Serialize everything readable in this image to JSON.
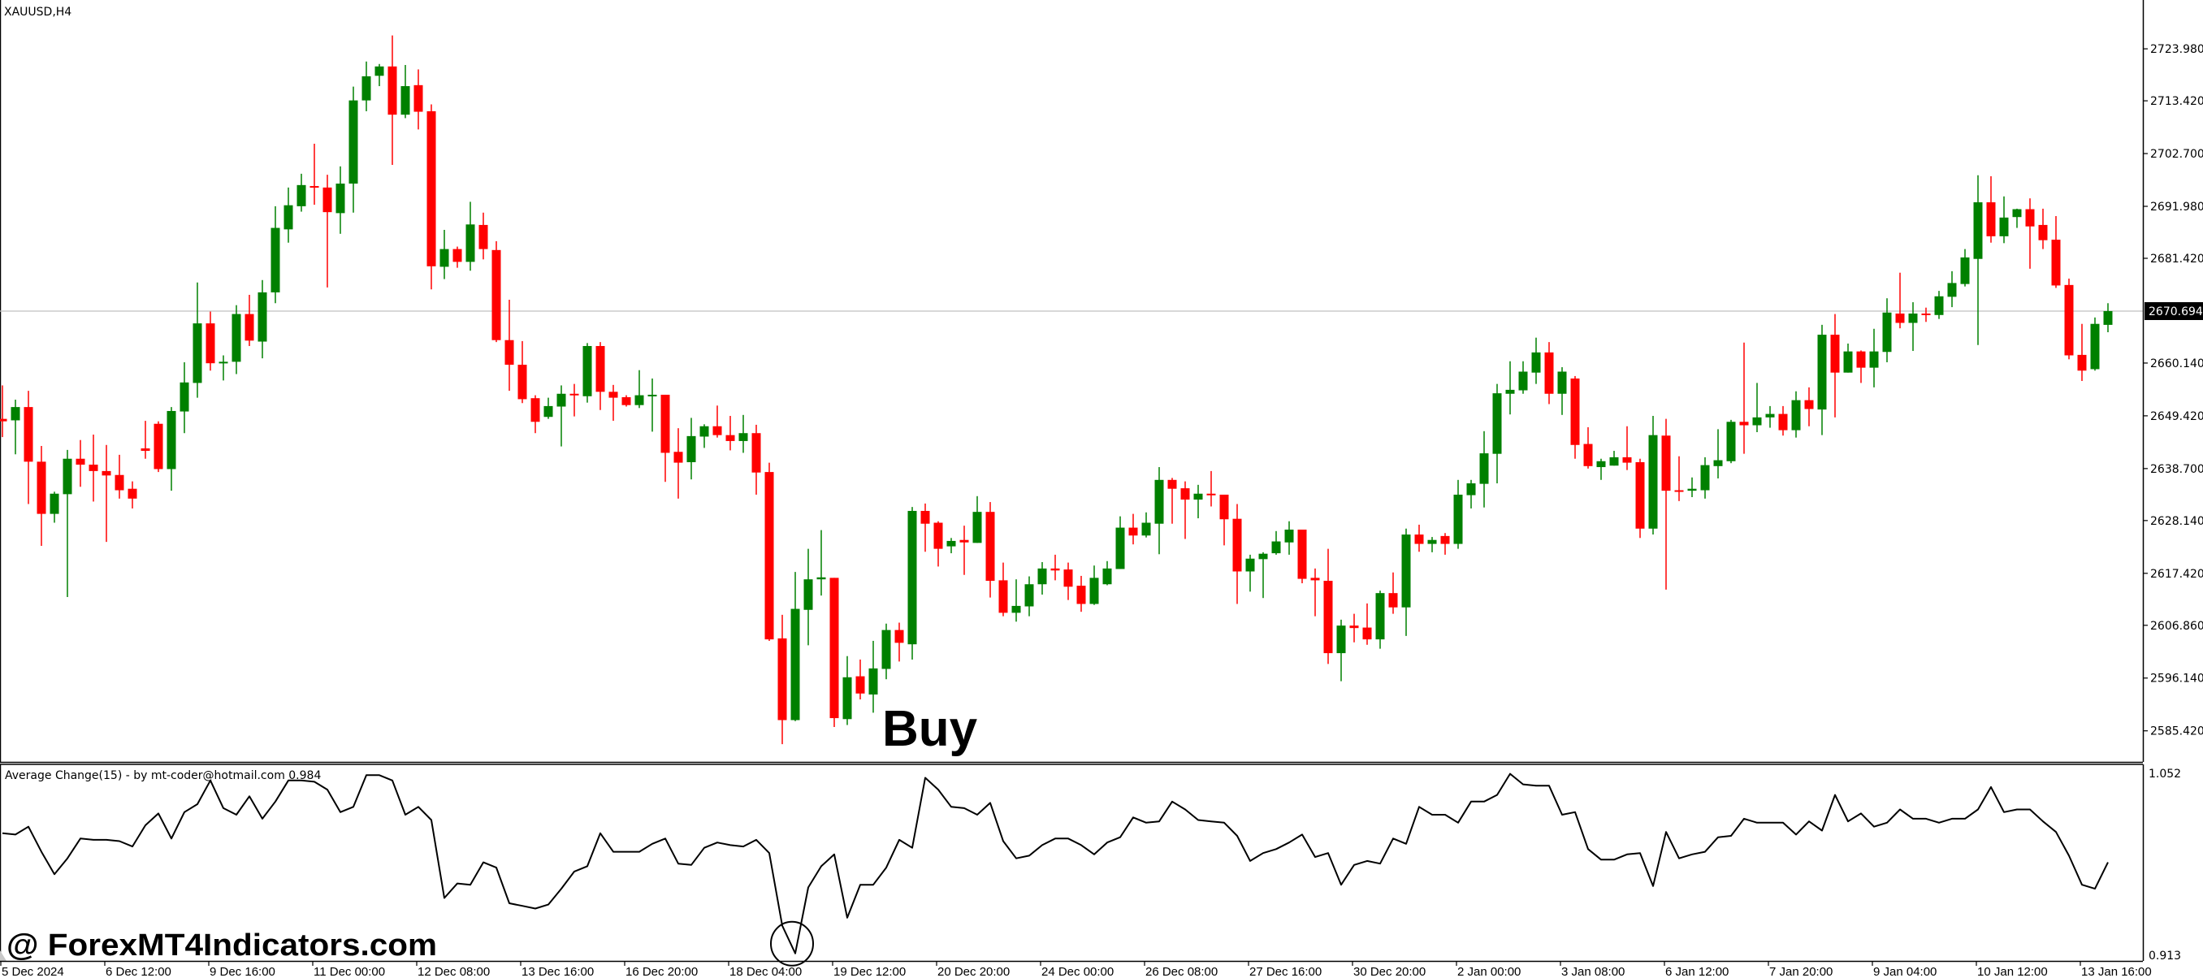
{
  "chart_data": {
    "type": "candlestick",
    "title": "XAUUSD,H4",
    "symbol": "XAUUSD",
    "timeframe": "H4",
    "colors": {
      "bull": "#008000",
      "bear": "#ff0000",
      "indicator_line": "#000000",
      "current_price_line": "#c0c0c0",
      "current_price_box": "#000000"
    },
    "price_axis": {
      "ticks": [
        2723.98,
        2713.42,
        2702.7,
        2691.98,
        2681.42,
        2660.14,
        2649.42,
        2638.7,
        2628.14,
        2617.42,
        2606.86,
        2596.14,
        2585.42
      ],
      "tick_labels": [
        "2723.980",
        "2713.420",
        "2702.700",
        "2691.980",
        "2681.420",
        "2660.140",
        "2649.420",
        "2638.700",
        "2628.140",
        "2617.420",
        "2606.860",
        "2596.140",
        "2585.420"
      ],
      "y_range": [
        2579.1,
        2733.9
      ],
      "current_price": 2670.694,
      "current_price_label": "2670.694"
    },
    "time_axis": {
      "labels": [
        "5 Dec 2024",
        "6 Dec 12:00",
        "9 Dec 16:00",
        "11 Dec 00:00",
        "12 Dec 08:00",
        "13 Dec 16:00",
        "16 Dec 20:00",
        "18 Dec 04:00",
        "19 Dec 12:00",
        "20 Dec 20:00",
        "24 Dec 00:00",
        "26 Dec 08:00",
        "27 Dec 16:00",
        "30 Dec 20:00",
        "2 Jan 00:00",
        "3 Jan 08:00",
        "6 Jan 12:00",
        "7 Jan 20:00",
        "9 Jan 04:00",
        "10 Jan 12:00",
        "13 Jan 16:00"
      ],
      "bars_per_label": 8
    },
    "ohlc_fields": [
      "open",
      "high",
      "low",
      "close"
    ],
    "candles": [
      [
        2648.8,
        2655.6,
        2645.1,
        2648.3
      ],
      [
        2648.5,
        2652.7,
        2641.6,
        2651.2
      ],
      [
        2651.2,
        2654.5,
        2631.5,
        2640.1
      ],
      [
        2640.1,
        2643.3,
        2623.0,
        2629.5
      ],
      [
        2629.5,
        2634.0,
        2627.7,
        2633.6
      ],
      [
        2633.5,
        2642.5,
        2612.6,
        2640.7
      ],
      [
        2640.7,
        2644.5,
        2635.0,
        2639.5
      ],
      [
        2639.5,
        2645.6,
        2632.0,
        2638.2
      ],
      [
        2638.2,
        2643.5,
        2623.8,
        2637.3
      ],
      [
        2637.4,
        2641.5,
        2632.6,
        2634.3
      ],
      [
        2634.6,
        2636.1,
        2630.6,
        2632.6
      ],
      [
        2642.8,
        2648.4,
        2640.7,
        2642.3
      ],
      [
        2647.8,
        2648.3,
        2638.0,
        2638.6
      ],
      [
        2638.6,
        2651.2,
        2634.2,
        2650.4
      ],
      [
        2650.3,
        2660.3,
        2645.9,
        2656.2
      ],
      [
        2656.1,
        2676.5,
        2653.1,
        2668.2
      ],
      [
        2668.2,
        2670.6,
        2658.6,
        2660.1
      ],
      [
        2660.1,
        2661.7,
        2656.6,
        2660.4
      ],
      [
        2660.4,
        2671.9,
        2657.9,
        2670.1
      ],
      [
        2670.1,
        2674.0,
        2663.6,
        2664.7
      ],
      [
        2664.5,
        2677.0,
        2661.1,
        2674.5
      ],
      [
        2674.5,
        2692.0,
        2672.3,
        2687.6
      ],
      [
        2687.3,
        2695.8,
        2684.6,
        2692.2
      ],
      [
        2692.0,
        2698.6,
        2690.9,
        2696.3
      ],
      [
        2696.1,
        2704.7,
        2692.3,
        2695.8
      ],
      [
        2695.8,
        2698.4,
        2675.5,
        2690.8
      ],
      [
        2690.6,
        2700.1,
        2686.4,
        2696.6
      ],
      [
        2696.6,
        2716.3,
        2690.7,
        2713.5
      ],
      [
        2713.5,
        2721.4,
        2711.3,
        2718.4
      ],
      [
        2718.5,
        2720.9,
        2716.4,
        2720.4
      ],
      [
        2720.4,
        2726.7,
        2700.4,
        2710.6
      ],
      [
        2710.6,
        2720.7,
        2709.9,
        2716.4
      ],
      [
        2716.6,
        2719.8,
        2707.6,
        2711.2
      ],
      [
        2711.3,
        2712.7,
        2675.1,
        2679.8
      ],
      [
        2679.7,
        2687.2,
        2677.2,
        2683.3
      ],
      [
        2683.3,
        2683.8,
        2679.5,
        2680.7
      ],
      [
        2680.7,
        2692.9,
        2678.9,
        2688.3
      ],
      [
        2688.2,
        2690.7,
        2681.2,
        2683.3
      ],
      [
        2683.1,
        2684.9,
        2664.4,
        2664.8
      ],
      [
        2664.8,
        2673.0,
        2654.5,
        2659.8
      ],
      [
        2659.8,
        2664.6,
        2652.0,
        2652.8
      ],
      [
        2653.0,
        2653.6,
        2645.9,
        2648.2
      ],
      [
        2649.2,
        2653.1,
        2648.8,
        2651.4
      ],
      [
        2651.3,
        2655.6,
        2643.2,
        2653.9
      ],
      [
        2653.9,
        2655.9,
        2649.3,
        2653.7
      ],
      [
        2653.4,
        2664.2,
        2652.1,
        2663.6
      ],
      [
        2663.6,
        2664.4,
        2650.6,
        2654.3
      ],
      [
        2654.3,
        2655.7,
        2648.4,
        2653.1
      ],
      [
        2653.2,
        2653.6,
        2651.3,
        2651.6
      ],
      [
        2651.6,
        2658.7,
        2651.0,
        2653.6
      ],
      [
        2653.4,
        2657.0,
        2646.2,
        2653.7
      ],
      [
        2653.7,
        2653.7,
        2636.0,
        2641.9
      ],
      [
        2642.1,
        2646.9,
        2632.6,
        2639.9
      ],
      [
        2640.0,
        2649.0,
        2636.5,
        2645.3
      ],
      [
        2645.2,
        2647.7,
        2642.9,
        2647.3
      ],
      [
        2647.3,
        2651.5,
        2645.0,
        2645.5
      ],
      [
        2645.5,
        2649.4,
        2642.4,
        2644.3
      ],
      [
        2644.3,
        2649.6,
        2641.9,
        2645.9
      ],
      [
        2645.9,
        2647.6,
        2633.4,
        2637.9
      ],
      [
        2638.0,
        2639.9,
        2603.7,
        2604.0
      ],
      [
        2604.2,
        2609.0,
        2582.7,
        2587.6
      ],
      [
        2587.6,
        2617.7,
        2587.4,
        2610.2
      ],
      [
        2610.0,
        2622.4,
        2602.8,
        2616.2
      ],
      [
        2616.2,
        2626.2,
        2612.9,
        2616.6
      ],
      [
        2616.5,
        2616.5,
        2586.2,
        2588.0
      ],
      [
        2587.8,
        2600.6,
        2586.6,
        2596.3
      ],
      [
        2596.5,
        2599.9,
        2591.8,
        2593.0
      ],
      [
        2592.8,
        2603.7,
        2589.1,
        2598.1
      ],
      [
        2598.0,
        2607.2,
        2595.9,
        2605.9
      ],
      [
        2605.9,
        2607.4,
        2599.5,
        2603.3
      ],
      [
        2603.0,
        2630.9,
        2599.9,
        2630.1
      ],
      [
        2630.1,
        2631.6,
        2621.8,
        2627.5
      ],
      [
        2627.7,
        2628.0,
        2618.8,
        2622.4
      ],
      [
        2622.9,
        2624.6,
        2621.5,
        2624.0
      ],
      [
        2624.2,
        2627.1,
        2617.1,
        2623.7
      ],
      [
        2623.6,
        2633.1,
        2623.6,
        2629.9
      ],
      [
        2629.9,
        2631.9,
        2612.5,
        2615.9
      ],
      [
        2616.0,
        2619.6,
        2608.7,
        2609.4
      ],
      [
        2609.4,
        2616.2,
        2607.6,
        2610.8
      ],
      [
        2610.7,
        2616.8,
        2608.7,
        2615.2
      ],
      [
        2615.2,
        2619.7,
        2613.1,
        2618.4
      ],
      [
        2618.4,
        2621.2,
        2616.0,
        2618.0
      ],
      [
        2618.2,
        2619.6,
        2612.0,
        2614.7
      ],
      [
        2614.9,
        2616.9,
        2609.6,
        2611.2
      ],
      [
        2611.2,
        2619.0,
        2611.0,
        2616.5
      ],
      [
        2615.2,
        2619.9,
        2615.0,
        2618.4
      ],
      [
        2618.3,
        2629.0,
        2618.3,
        2626.7
      ],
      [
        2626.7,
        2629.5,
        2623.3,
        2625.1
      ],
      [
        2625.1,
        2629.8,
        2624.7,
        2627.7
      ],
      [
        2627.5,
        2639.0,
        2621.3,
        2636.4
      ],
      [
        2636.4,
        2636.8,
        2627.5,
        2634.6
      ],
      [
        2634.7,
        2636.1,
        2624.4,
        2632.4
      ],
      [
        2632.4,
        2635.4,
        2628.6,
        2633.6
      ],
      [
        2633.6,
        2638.2,
        2631.0,
        2633.3
      ],
      [
        2633.4,
        2633.4,
        2623.1,
        2628.4
      ],
      [
        2628.5,
        2631.5,
        2611.2,
        2617.8
      ],
      [
        2617.8,
        2621.2,
        2613.7,
        2620.4
      ],
      [
        2620.3,
        2621.7,
        2612.4,
        2621.4
      ],
      [
        2621.5,
        2626.0,
        2621.2,
        2623.9
      ],
      [
        2623.7,
        2628.0,
        2621.2,
        2626.3
      ],
      [
        2626.3,
        2626.3,
        2615.4,
        2616.3
      ],
      [
        2616.5,
        2618.4,
        2608.7,
        2616.0
      ],
      [
        2615.9,
        2622.4,
        2599.0,
        2601.2
      ],
      [
        2601.2,
        2608.0,
        2595.5,
        2606.8
      ],
      [
        2606.8,
        2609.2,
        2603.4,
        2606.3
      ],
      [
        2606.4,
        2611.3,
        2602.9,
        2604.0
      ],
      [
        2604.0,
        2613.9,
        2602.1,
        2613.4
      ],
      [
        2613.4,
        2617.6,
        2609.2,
        2610.5
      ],
      [
        2610.5,
        2626.5,
        2604.7,
        2625.3
      ],
      [
        2625.3,
        2627.3,
        2621.8,
        2623.4
      ],
      [
        2623.4,
        2624.8,
        2621.7,
        2624.2
      ],
      [
        2625.0,
        2625.6,
        2621.2,
        2623.4
      ],
      [
        2623.4,
        2636.4,
        2622.4,
        2633.4
      ],
      [
        2633.3,
        2636.4,
        2630.6,
        2635.7
      ],
      [
        2635.6,
        2646.3,
        2630.8,
        2641.8
      ],
      [
        2641.7,
        2655.9,
        2635.7,
        2654.0
      ],
      [
        2653.9,
        2660.5,
        2649.7,
        2654.7
      ],
      [
        2654.6,
        2660.5,
        2653.9,
        2658.4
      ],
      [
        2658.2,
        2665.3,
        2655.9,
        2662.3
      ],
      [
        2662.3,
        2664.4,
        2651.8,
        2653.9
      ],
      [
        2653.9,
        2659.3,
        2649.6,
        2658.4
      ],
      [
        2657.0,
        2657.5,
        2640.7,
        2643.5
      ],
      [
        2643.7,
        2647.1,
        2638.7,
        2639.2
      ],
      [
        2639.0,
        2640.7,
        2636.4,
        2640.2
      ],
      [
        2639.3,
        2642.3,
        2639.3,
        2641.0
      ],
      [
        2641.0,
        2647.3,
        2638.4,
        2639.9
      ],
      [
        2640.0,
        2640.7,
        2624.6,
        2626.5
      ],
      [
        2626.5,
        2649.4,
        2625.3,
        2645.5
      ],
      [
        2645.4,
        2648.8,
        2614.1,
        2634.2
      ],
      [
        2634.3,
        2641.2,
        2632.1,
        2634.0
      ],
      [
        2634.2,
        2636.9,
        2632.9,
        2634.6
      ],
      [
        2634.3,
        2641.0,
        2632.6,
        2639.4
      ],
      [
        2639.2,
        2646.7,
        2636.7,
        2640.4
      ],
      [
        2640.2,
        2648.6,
        2639.8,
        2648.2
      ],
      [
        2648.2,
        2664.3,
        2641.7,
        2647.5
      ],
      [
        2647.5,
        2656.1,
        2646.1,
        2649.1
      ],
      [
        2649.1,
        2651.4,
        2647.0,
        2649.8
      ],
      [
        2649.8,
        2651.4,
        2645.4,
        2646.5
      ],
      [
        2646.5,
        2654.4,
        2645.0,
        2652.6
      ],
      [
        2652.6,
        2655.2,
        2647.3,
        2650.8
      ],
      [
        2650.7,
        2667.9,
        2645.5,
        2665.9
      ],
      [
        2665.9,
        2670.1,
        2649.1,
        2658.2
      ],
      [
        2658.2,
        2664.1,
        2658.2,
        2662.5
      ],
      [
        2662.5,
        2662.7,
        2656.1,
        2659.2
      ],
      [
        2659.2,
        2667.1,
        2655.2,
        2662.5
      ],
      [
        2662.4,
        2673.3,
        2660.3,
        2670.4
      ],
      [
        2670.2,
        2678.5,
        2667.2,
        2668.3
      ],
      [
        2668.3,
        2672.5,
        2662.6,
        2670.2
      ],
      [
        2670.2,
        2671.4,
        2668.5,
        2669.9
      ],
      [
        2669.9,
        2674.8,
        2669.1,
        2673.7
      ],
      [
        2673.6,
        2678.8,
        2671.5,
        2676.4
      ],
      [
        2676.2,
        2683.3,
        2675.7,
        2681.6
      ],
      [
        2681.3,
        2698.3,
        2663.8,
        2692.8
      ],
      [
        2692.8,
        2698.1,
        2684.6,
        2685.9
      ],
      [
        2685.9,
        2694.0,
        2684.5,
        2689.7
      ],
      [
        2689.8,
        2691.5,
        2687.6,
        2691.4
      ],
      [
        2691.4,
        2693.6,
        2679.3,
        2687.9
      ],
      [
        2688.2,
        2691.5,
        2683.3,
        2685.1
      ],
      [
        2685.2,
        2690.0,
        2675.4,
        2675.9
      ],
      [
        2676.0,
        2677.3,
        2660.9,
        2661.7
      ],
      [
        2661.8,
        2668.1,
        2656.5,
        2658.6
      ],
      [
        2658.9,
        2669.4,
        2658.6,
        2668.1
      ],
      [
        2667.9,
        2672.3,
        2666.4,
        2670.7
      ]
    ],
    "indicator": {
      "label": "Average Change(15) - by mt-coder@hotmail.com 0.984",
      "name": "Average Change(15)",
      "current_value": 0.984,
      "y_range": [
        0.913,
        1.052
      ],
      "max_label": "1.052",
      "min_label": "0.913",
      "values": [
        1.006,
        1.005,
        1.011,
        0.992,
        0.975,
        0.987,
        1.002,
        1.001,
        1.001,
        1.0,
        0.996,
        1.012,
        1.021,
        1.002,
        1.022,
        1.028,
        1.046,
        1.025,
        1.02,
        1.034,
        1.017,
        1.03,
        1.046,
        1.046,
        1.045,
        1.039,
        1.022,
        1.026,
        1.05,
        1.05,
        1.046,
        1.02,
        1.026,
        1.016,
        0.957,
        0.968,
        0.967,
        0.984,
        0.98,
        0.953,
        0.951,
        0.949,
        0.952,
        0.964,
        0.977,
        0.981,
        1.006,
        0.992,
        0.992,
        0.992,
        0.998,
        1.002,
        0.983,
        0.982,
        0.995,
        0.999,
        0.997,
        0.996,
        1.001,
        0.991,
        0.936,
        0.915,
        0.965,
        0.981,
        0.99,
        0.942,
        0.967,
        0.967,
        0.98,
        1.001,
        0.995,
        1.048,
        1.039,
        1.026,
        1.025,
        1.02,
        1.029,
        1.0,
        0.987,
        0.989,
        0.997,
        1.002,
        1.002,
        0.997,
        0.99,
        0.999,
        1.003,
        1.018,
        1.014,
        1.015,
        1.03,
        1.024,
        1.016,
        1.015,
        1.014,
        1.004,
        0.985,
        0.991,
        0.994,
        0.999,
        1.005,
        0.988,
        0.991,
        0.967,
        0.982,
        0.985,
        0.983,
        1.002,
        0.998,
        1.026,
        1.02,
        1.02,
        1.014,
        1.03,
        1.03,
        1.035,
        1.051,
        1.043,
        1.042,
        1.042,
        1.02,
        1.022,
        0.994,
        0.986,
        0.986,
        0.99,
        0.991,
        0.966,
        1.007,
        0.987,
        0.99,
        0.992,
        1.003,
        1.004,
        1.017,
        1.014,
        1.014,
        1.014,
        1.005,
        1.015,
        1.008,
        1.035,
        1.015,
        1.021,
        1.011,
        1.014,
        1.024,
        1.017,
        1.017,
        1.014,
        1.017,
        1.017,
        1.024,
        1.041,
        1.022,
        1.024,
        1.024,
        1.015,
        1.007,
        0.989,
        0.967,
        0.964,
        0.984
      ],
      "circled_bar": 62
    },
    "annotations": {
      "buy_text": "Buy",
      "buy_bar": 69
    },
    "watermark": "@ ForexMT4Indicators.com"
  }
}
